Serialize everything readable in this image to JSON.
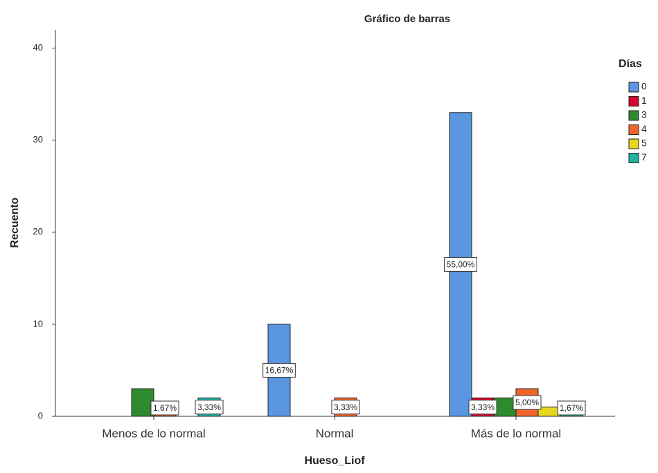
{
  "chart_data": {
    "type": "bar",
    "title": "Gráfico de barras",
    "x_label": "Hueso_Liof",
    "y_label": "Recuento",
    "legend_title": "Días",
    "categories": [
      "Menos de lo normal",
      "Normal",
      "Más de lo normal"
    ],
    "series": [
      {
        "name": "0",
        "color": "#5b97e0",
        "values": [
          0,
          10,
          33
        ],
        "value_labels": [
          null,
          "16,67%",
          "55,00%"
        ]
      },
      {
        "name": "1",
        "color": "#d4062e",
        "values": [
          0,
          0,
          2
        ],
        "value_labels": [
          null,
          null,
          "3,33%"
        ]
      },
      {
        "name": "3",
        "color": "#2e8a2e",
        "values": [
          3,
          0,
          2
        ],
        "value_labels": [
          null,
          null,
          null
        ]
      },
      {
        "name": "4",
        "color": "#ef6529",
        "values": [
          1,
          2,
          3
        ],
        "value_labels": [
          "1,67%",
          "3,33%",
          "5,00%"
        ]
      },
      {
        "name": "5",
        "color": "#e5d81f",
        "values": [
          0,
          0,
          1
        ],
        "value_labels": [
          null,
          null,
          null
        ]
      },
      {
        "name": "7",
        "color": "#22b3a3",
        "values": [
          2,
          0,
          1
        ],
        "value_labels": [
          "3,33%",
          null,
          "1,67%"
        ]
      }
    ],
    "ylim": [
      0,
      42
    ],
    "yticks": [
      0,
      10,
      20,
      30,
      40
    ],
    "grid": false,
    "legend": "right"
  }
}
